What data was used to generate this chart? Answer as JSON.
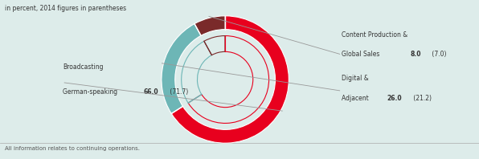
{
  "title": "in percent, 2014 figures in parentheses",
  "footnote": "All information relates to continuing operations.",
  "segments": [
    {
      "label_line1": "Broadcasting",
      "label_line2": "German-speaking",
      "value": 66.0,
      "prev_value": 71.7,
      "color": "#e8001e",
      "side": "left"
    },
    {
      "label_line1": "Digital &",
      "label_line2": "Adjacent",
      "value": 26.0,
      "prev_value": 21.2,
      "color": "#6db6b6",
      "side": "right"
    },
    {
      "label_line1": "Content Production &",
      "label_line2": "Global Sales",
      "value": 8.0,
      "prev_value": 7.0,
      "color": "#7a2a2a",
      "side": "right"
    }
  ],
  "background_color": "#ddecea",
  "text_color": "#333333",
  "line_color": "#999999",
  "start_angle": 90
}
